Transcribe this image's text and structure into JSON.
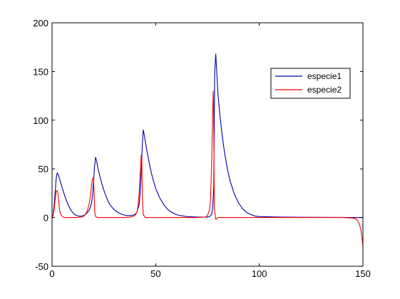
{
  "chart_data": {
    "type": "line",
    "title": "",
    "xlabel": "",
    "ylabel": "",
    "xlim": [
      0,
      150
    ],
    "ylim": [
      -50,
      200
    ],
    "xticks": [
      0,
      50,
      100,
      150
    ],
    "yticks": [
      -50,
      0,
      50,
      100,
      150,
      200
    ],
    "grid": false,
    "legend_position": "top-right",
    "series": [
      {
        "name": "especie1",
        "color": "#0000a8",
        "x": [
          0,
          0.5,
          1,
          1.5,
          2,
          2.5,
          3,
          4,
          5,
          6,
          7,
          8,
          9,
          10,
          11,
          12,
          13,
          14,
          15,
          16,
          17,
          18,
          19,
          19.5,
          20,
          20.5,
          21,
          21.5,
          22,
          23,
          24,
          25,
          26,
          27,
          28,
          30,
          32,
          34,
          36,
          38,
          40,
          41,
          42,
          42.5,
          43,
          43.5,
          44,
          44.5,
          45,
          46,
          47,
          48,
          49,
          50,
          52,
          54,
          56,
          58,
          60,
          62,
          65,
          70,
          75,
          76,
          77,
          77.5,
          78,
          78.5,
          79,
          79.5,
          80,
          81,
          82,
          83,
          84,
          85,
          86,
          88,
          90,
          92,
          94,
          96,
          98,
          100,
          110,
          120,
          130,
          140,
          145,
          150
        ],
        "y": [
          0,
          3,
          12,
          26,
          40,
          46,
          44,
          37,
          30,
          23,
          17,
          12,
          8,
          5,
          3,
          2,
          1.5,
          1.5,
          2,
          3,
          5,
          8,
          14,
          22,
          36,
          52,
          62,
          58,
          52,
          43,
          35,
          28,
          22,
          17,
          13,
          8,
          5,
          3,
          2,
          2,
          3,
          6,
          13,
          25,
          45,
          72,
          90,
          85,
          78,
          66,
          55,
          45,
          37,
          30,
          20,
          13,
          8,
          5,
          3,
          2,
          1,
          0.5,
          0.5,
          1,
          3,
          10,
          30,
          150,
          168,
          148,
          128,
          105,
          86,
          70,
          57,
          46,
          37,
          24,
          15,
          9,
          5,
          3,
          1.5,
          1,
          0.5,
          0.3,
          0.2,
          0.1,
          0,
          0
        ]
      },
      {
        "name": "especie2",
        "color": "#ff0000",
        "x": [
          0,
          0.5,
          1,
          1.5,
          2,
          2.5,
          3,
          3.5,
          4,
          5,
          6,
          8,
          10,
          12,
          14,
          15,
          16,
          17,
          18,
          18.5,
          19,
          19.5,
          20,
          20.3,
          20.6,
          21,
          22,
          24,
          30,
          35,
          38,
          40,
          41,
          41.5,
          42,
          42.5,
          43,
          43.3,
          43.6,
          44,
          45,
          50,
          60,
          70,
          74,
          75,
          76,
          76.5,
          77,
          77.5,
          77.8,
          78,
          78.3,
          79,
          80,
          90,
          100,
          120,
          140,
          145,
          146,
          147,
          148,
          149,
          149.5,
          150
        ],
        "y": [
          0,
          2,
          8,
          18,
          27,
          28,
          22,
          10,
          4,
          1,
          0,
          0,
          0,
          0,
          0.5,
          1,
          3,
          7,
          15,
          22,
          32,
          40,
          41,
          25,
          6,
          1,
          0,
          0,
          0,
          0,
          0.5,
          2,
          6,
          12,
          25,
          45,
          64,
          60,
          20,
          3,
          0,
          0,
          0,
          0,
          0.5,
          2,
          8,
          20,
          55,
          110,
          130,
          100,
          10,
          -2,
          0,
          0,
          0,
          0,
          0,
          -0.5,
          -1,
          -2,
          -5,
          -12,
          -20,
          -29
        ]
      }
    ]
  }
}
